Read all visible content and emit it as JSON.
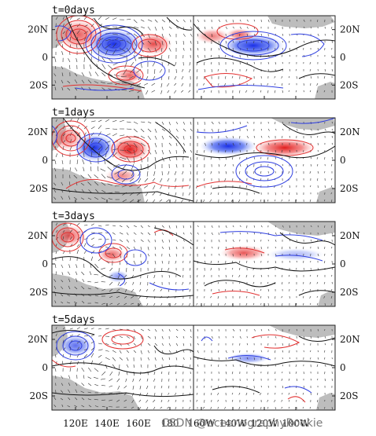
{
  "chart_data": {
    "type": "multi-panel map",
    "panels": [
      {
        "title": "t=0days"
      },
      {
        "title": "t=1days"
      },
      {
        "title": "t=3days"
      },
      {
        "title": "t=5days"
      }
    ],
    "lat_ticks": [
      "20N",
      "0",
      "20S"
    ],
    "lat_values": [
      20,
      0,
      -20
    ],
    "lat_range": [
      -30,
      30
    ],
    "lon_ticks": [
      "120E",
      "140E",
      "160E",
      "180",
      "160W",
      "140W",
      "120W",
      "100W"
    ],
    "lon_values": [
      120,
      140,
      160,
      180,
      200,
      220,
      240,
      260
    ],
    "lon_range": [
      105,
      285
    ],
    "panel_split_lon": 180,
    "colors": {
      "positive": "#e23030",
      "negative": "#2f3fe0",
      "zero": "#111111",
      "land": "#bdbdbd"
    }
  },
  "watermark": "CSDN @oceanographyRookie"
}
